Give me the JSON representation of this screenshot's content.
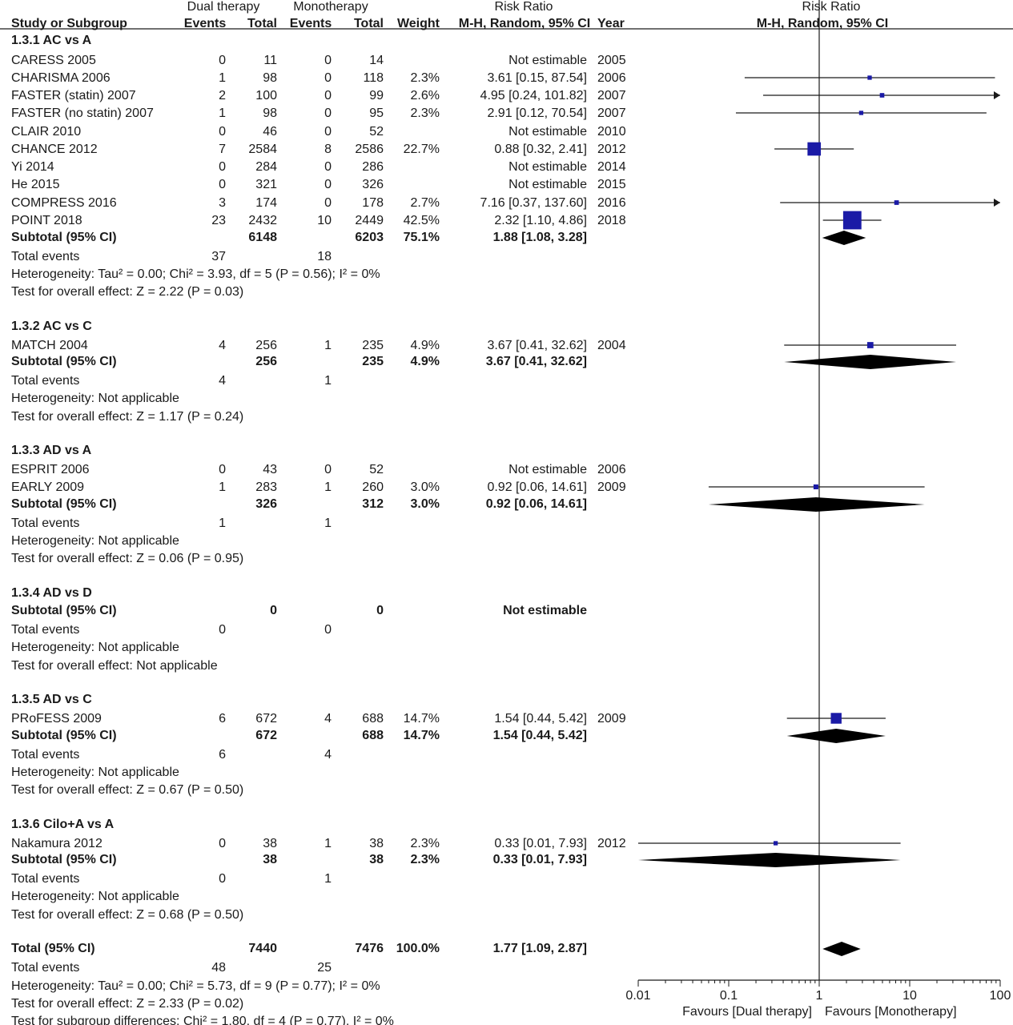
{
  "header": {
    "group1_title": "Dual therapy",
    "group2_title": "Monotherapy",
    "rr_title": "Risk Ratio",
    "plot_title": "Risk Ratio",
    "col_study": "Study or Subgroup",
    "col_events1": "Events",
    "col_total1": "Total",
    "col_events2": "Events",
    "col_total2": "Total",
    "col_weight": "Weight",
    "col_ci": "M-H, Random, 95% CI",
    "col_year": "Year",
    "plot_subtitle": "M-H, Random, 95% CI"
  },
  "chart_data": {
    "type": "forest",
    "x_scale": "log",
    "xlim": [
      0.01,
      100
    ],
    "x_ticks": [
      "0.01",
      "0.1",
      "1",
      "10",
      "100"
    ],
    "favours_left": "Favours [Dual therapy]",
    "favours_right": "Favours [Monotherapy]",
    "colors": {
      "study": "#1a1aa6",
      "pooled": "#000000"
    },
    "subgroups": [
      {
        "title": "1.3.1 AC vs A",
        "studies": [
          {
            "name": "CARESS 2005",
            "e1": "0",
            "t1": "11",
            "e2": "0",
            "t2": "14",
            "weight": "",
            "ci": "Not estimable",
            "year": "2005"
          },
          {
            "name": "CHARISMA 2006",
            "e1": "1",
            "t1": "98",
            "e2": "0",
            "t2": "118",
            "weight": "2.3%",
            "ci": "3.61 [0.15, 87.54]",
            "year": "2006",
            "rr": 3.61,
            "lo": 0.15,
            "hi": 87.54
          },
          {
            "name": "FASTER (statin) 2007",
            "e1": "2",
            "t1": "100",
            "e2": "0",
            "t2": "99",
            "weight": "2.6%",
            "ci": "4.95 [0.24, 101.82]",
            "year": "2007",
            "rr": 4.95,
            "lo": 0.24,
            "hi": 101.82
          },
          {
            "name": "FASTER (no statin) 2007",
            "e1": "1",
            "t1": "98",
            "e2": "0",
            "t2": "95",
            "weight": "2.3%",
            "ci": "2.91 [0.12, 70.54]",
            "year": "2007",
            "rr": 2.91,
            "lo": 0.12,
            "hi": 70.54
          },
          {
            "name": "CLAIR 2010",
            "e1": "0",
            "t1": "46",
            "e2": "0",
            "t2": "52",
            "weight": "",
            "ci": "Not estimable",
            "year": "2010"
          },
          {
            "name": "CHANCE 2012",
            "e1": "7",
            "t1": "2584",
            "e2": "8",
            "t2": "2586",
            "weight": "22.7%",
            "ci": "0.88 [0.32, 2.41]",
            "year": "2012",
            "rr": 0.88,
            "lo": 0.32,
            "hi": 2.41
          },
          {
            "name": "Yi 2014",
            "e1": "0",
            "t1": "284",
            "e2": "0",
            "t2": "286",
            "weight": "",
            "ci": "Not estimable",
            "year": "2014"
          },
          {
            "name": "He 2015",
            "e1": "0",
            "t1": "321",
            "e2": "0",
            "t2": "326",
            "weight": "",
            "ci": "Not estimable",
            "year": "2015"
          },
          {
            "name": "COMPRESS 2016",
            "e1": "3",
            "t1": "174",
            "e2": "0",
            "t2": "178",
            "weight": "2.7%",
            "ci": "7.16 [0.37, 137.60]",
            "year": "2016",
            "rr": 7.16,
            "lo": 0.37,
            "hi": 137.6
          },
          {
            "name": "POINT 2018",
            "e1": "23",
            "t1": "2432",
            "e2": "10",
            "t2": "2449",
            "weight": "42.5%",
            "ci": "2.32 [1.10, 4.86]",
            "year": "2018",
            "rr": 2.32,
            "lo": 1.1,
            "hi": 4.86
          }
        ],
        "subtotal": {
          "label": "Subtotal (95% CI)",
          "t1": "6148",
          "t2": "6203",
          "weight": "75.1%",
          "ci": "1.88 [1.08, 3.28]",
          "rr": 1.88,
          "lo": 1.08,
          "hi": 3.28
        },
        "total_events": {
          "label": "Total events",
          "e1": "37",
          "e2": "18"
        },
        "heterogeneity": "Heterogeneity: Tau² = 0.00; Chi² = 3.93, df = 5 (P = 0.56); I² = 0%",
        "overall": "Test for overall effect: Z = 2.22 (P = 0.03)"
      },
      {
        "title": "1.3.2 AC vs C",
        "studies": [
          {
            "name": "MATCH 2004",
            "e1": "4",
            "t1": "256",
            "e2": "1",
            "t2": "235",
            "weight": "4.9%",
            "ci": "3.67 [0.41, 32.62]",
            "year": "2004",
            "rr": 3.67,
            "lo": 0.41,
            "hi": 32.62
          }
        ],
        "subtotal": {
          "label": "Subtotal (95% CI)",
          "t1": "256",
          "t2": "235",
          "weight": "4.9%",
          "ci": "3.67 [0.41, 32.62]",
          "rr": 3.67,
          "lo": 0.41,
          "hi": 32.62
        },
        "total_events": {
          "label": "Total events",
          "e1": "4",
          "e2": "1"
        },
        "heterogeneity": "Heterogeneity: Not applicable",
        "overall": "Test for overall effect: Z = 1.17 (P = 0.24)"
      },
      {
        "title": "1.3.3 AD vs A",
        "studies": [
          {
            "name": "ESPRIT 2006",
            "e1": "0",
            "t1": "43",
            "e2": "0",
            "t2": "52",
            "weight": "",
            "ci": "Not estimable",
            "year": "2006"
          },
          {
            "name": "EARLY 2009",
            "e1": "1",
            "t1": "283",
            "e2": "1",
            "t2": "260",
            "weight": "3.0%",
            "ci": "0.92 [0.06, 14.61]",
            "year": "2009",
            "rr": 0.92,
            "lo": 0.06,
            "hi": 14.61
          }
        ],
        "subtotal": {
          "label": "Subtotal (95% CI)",
          "t1": "326",
          "t2": "312",
          "weight": "3.0%",
          "ci": "0.92 [0.06, 14.61]",
          "rr": 0.92,
          "lo": 0.06,
          "hi": 14.61
        },
        "total_events": {
          "label": "Total events",
          "e1": "1",
          "e2": "1"
        },
        "heterogeneity": "Heterogeneity: Not applicable",
        "overall": "Test for overall effect: Z = 0.06 (P = 0.95)"
      },
      {
        "title": "1.3.4 AD vs D",
        "studies": [],
        "subtotal": {
          "label": "Subtotal (95% CI)",
          "t1": "0",
          "t2": "0",
          "weight": "",
          "ci": "Not estimable"
        },
        "total_events": {
          "label": "Total events",
          "e1": "0",
          "e2": "0"
        },
        "heterogeneity": "Heterogeneity: Not applicable",
        "overall": "Test for overall effect: Not applicable"
      },
      {
        "title": "1.3.5 AD vs C",
        "studies": [
          {
            "name": "PRoFESS 2009",
            "e1": "6",
            "t1": "672",
            "e2": "4",
            "t2": "688",
            "weight": "14.7%",
            "ci": "1.54 [0.44, 5.42]",
            "year": "2009",
            "rr": 1.54,
            "lo": 0.44,
            "hi": 5.42
          }
        ],
        "subtotal": {
          "label": "Subtotal (95% CI)",
          "t1": "672",
          "t2": "688",
          "weight": "14.7%",
          "ci": "1.54 [0.44, 5.42]",
          "rr": 1.54,
          "lo": 0.44,
          "hi": 5.42
        },
        "total_events": {
          "label": "Total events",
          "e1": "6",
          "e2": "4"
        },
        "heterogeneity": "Heterogeneity: Not applicable",
        "overall": "Test for overall effect: Z = 0.67 (P = 0.50)"
      },
      {
        "title": "1.3.6 Cilo+A vs A",
        "studies": [
          {
            "name": "Nakamura 2012",
            "e1": "0",
            "t1": "38",
            "e2": "1",
            "t2": "38",
            "weight": "2.3%",
            "ci": "0.33 [0.01, 7.93]",
            "year": "2012",
            "rr": 0.33,
            "lo": 0.01,
            "hi": 7.93
          }
        ],
        "subtotal": {
          "label": "Subtotal (95% CI)",
          "t1": "38",
          "t2": "38",
          "weight": "2.3%",
          "ci": "0.33 [0.01, 7.93]",
          "rr": 0.33,
          "lo": 0.01,
          "hi": 7.93
        },
        "total_events": {
          "label": "Total events",
          "e1": "0",
          "e2": "1"
        },
        "heterogeneity": "Heterogeneity: Not applicable",
        "overall": "Test for overall effect: Z = 0.68 (P = 0.50)"
      }
    ],
    "total": {
      "label": "Total (95% CI)",
      "t1": "7440",
      "t2": "7476",
      "weight": "100.0%",
      "ci": "1.77 [1.09, 2.87]",
      "rr": 1.77,
      "lo": 1.09,
      "hi": 2.87
    },
    "total_events": {
      "label": "Total events",
      "e1": "48",
      "e2": "25"
    },
    "heterogeneity": "Heterogeneity: Tau² = 0.00; Chi² = 5.73, df = 9 (P = 0.77); I² = 0%",
    "overall": "Test for overall effect: Z = 2.33 (P = 0.02)",
    "subgroup_diff": "Test for subgroup differences: Chi² = 1.80, df = 4 (P = 0.77), I² = 0%"
  }
}
